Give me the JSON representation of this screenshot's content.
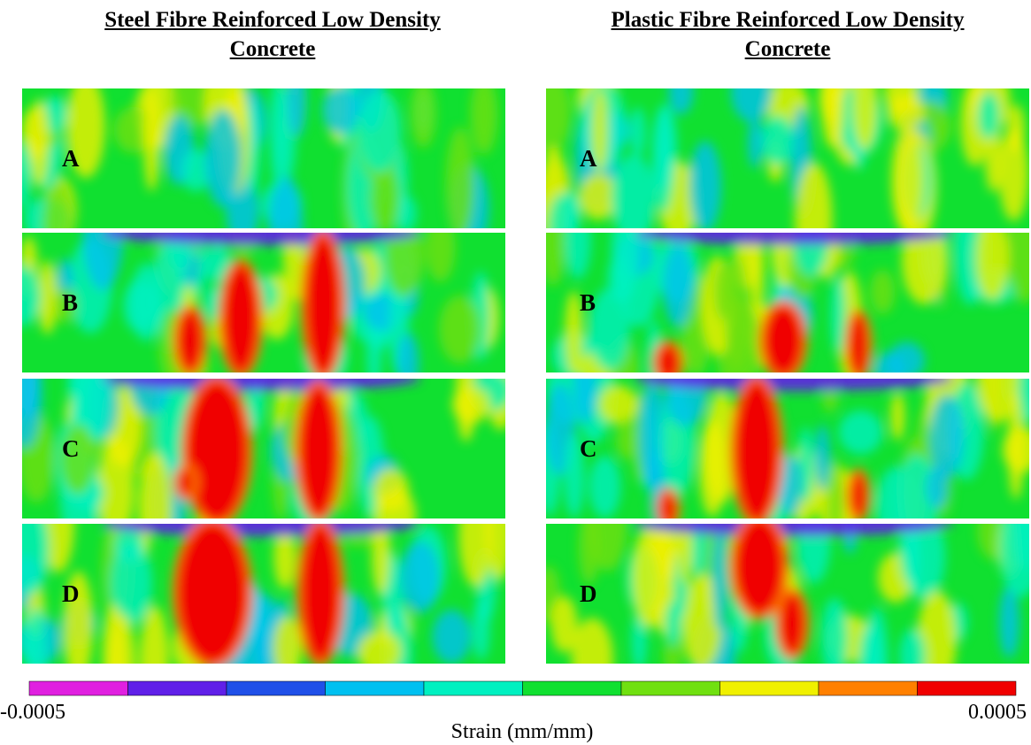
{
  "columns": [
    {
      "title": [
        "Steel Fibre Reinforced Low Density",
        "Concrete"
      ],
      "panels": [
        "A",
        "B",
        "C",
        "D"
      ]
    },
    {
      "title": [
        "Plastic Fibre Reinforced Low Density",
        "Concrete"
      ],
      "panels": [
        "A",
        "B",
        "C",
        "D"
      ]
    }
  ],
  "colorbar": {
    "colors": [
      "#e020e0",
      "#6020e8",
      "#2050e8",
      "#00c0f0",
      "#00f0c0",
      "#10e030",
      "#70e010",
      "#f0f000",
      "#ff8000",
      "#f00000"
    ],
    "min": -0.0005,
    "max": 0.0005,
    "label": "Strain (mm/mm)"
  }
}
